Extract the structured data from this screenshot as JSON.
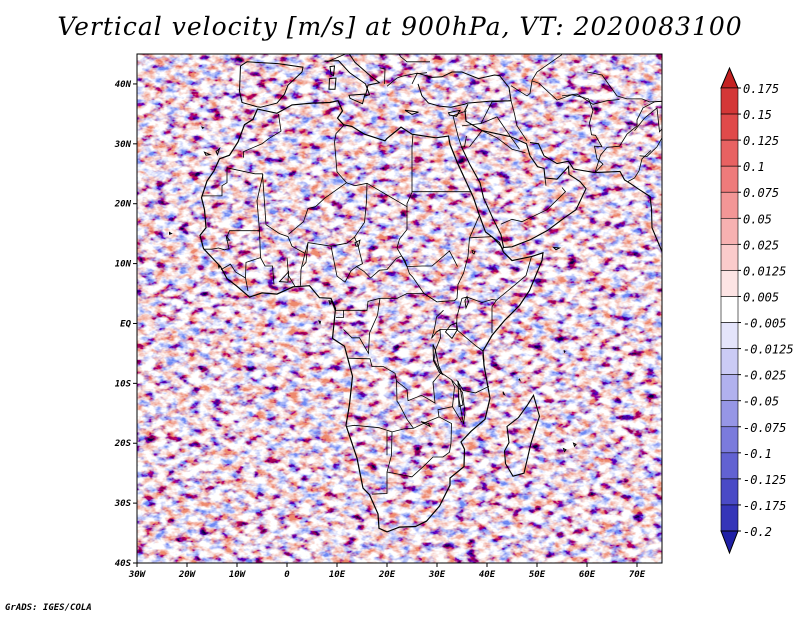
{
  "title": "Vertical velocity [m/s] at 900hPa, VT: 2020083100",
  "credit": "GrADS: IGES/COLA",
  "map": {
    "lon_range": [
      -30,
      75
    ],
    "lat_range": [
      -40,
      45
    ],
    "lon_ticks": [
      {
        "value": -30,
        "label": "30W"
      },
      {
        "value": -20,
        "label": "20W"
      },
      {
        "value": -10,
        "label": "10W"
      },
      {
        "value": 0,
        "label": "0"
      },
      {
        "value": 10,
        "label": "10E"
      },
      {
        "value": 20,
        "label": "20E"
      },
      {
        "value": 30,
        "label": "30E"
      },
      {
        "value": 40,
        "label": "40E"
      },
      {
        "value": 50,
        "label": "50E"
      },
      {
        "value": 60,
        "label": "60E"
      },
      {
        "value": 70,
        "label": "70E"
      }
    ],
    "lat_ticks": [
      {
        "value": 40,
        "label": "40N"
      },
      {
        "value": 30,
        "label": "30N"
      },
      {
        "value": 20,
        "label": "20N"
      },
      {
        "value": 10,
        "label": "10N"
      },
      {
        "value": 0,
        "label": "EQ"
      },
      {
        "value": -10,
        "label": "10S"
      },
      {
        "value": -20,
        "label": "20S"
      },
      {
        "value": -30,
        "label": "30S"
      },
      {
        "value": -40,
        "label": "40S"
      }
    ],
    "field_colors": {
      "positive": "#e04a45",
      "negative": "#5a5ae6",
      "neutral": "#ffffff"
    }
  },
  "colorbar": {
    "levels": [
      "0.175",
      "0.15",
      "0.125",
      "0.1",
      "0.075",
      "0.05",
      "0.025",
      "0.0125",
      "0.005",
      "-0.005",
      "-0.0125",
      "-0.025",
      "-0.05",
      "-0.075",
      "-0.1",
      "-0.125",
      "-0.175",
      "-0.2"
    ],
    "colors": [
      "#c42121",
      "#d43737",
      "#e04a4a",
      "#e86262",
      "#ef7b7b",
      "#f39696",
      "#f7b1b1",
      "#fbcbcb",
      "#fde4e4",
      "#ffffff",
      "#e4e4fb",
      "#cbcbf5",
      "#b1b1ee",
      "#9696e6",
      "#7b7bdc",
      "#6262d2",
      "#4a4ac6",
      "#3535b8",
      "#2020a6"
    ]
  }
}
